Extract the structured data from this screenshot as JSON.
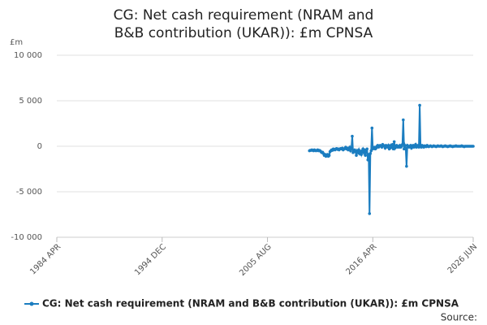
{
  "chart_data": {
    "type": "line",
    "title": "CG: Net cash requirement (NRAM and B&B contribution (UKAR)): £m CPNSA",
    "y_label": "£m",
    "source": "Source:",
    "xlim": [
      "1984-04",
      "2026-06"
    ],
    "xticks": [
      {
        "value": "1984-04",
        "label": "1984 APR"
      },
      {
        "value": "1994-12",
        "label": "1994 DEC"
      },
      {
        "value": "2005-08",
        "label": "2005 AUG"
      },
      {
        "value": "2016-04",
        "label": "2016 APR"
      },
      {
        "value": "2026-06",
        "label": "2026 JUN"
      }
    ],
    "ylim": [
      -10000,
      10000
    ],
    "yticks": [
      {
        "value": -10000,
        "label": "-10 000"
      },
      {
        "value": -5000,
        "label": "-5 000"
      },
      0,
      {
        "value": 5000,
        "label": "5 000"
      },
      {
        "value": 10000,
        "label": "10 000"
      }
    ],
    "grid": true,
    "legend": "bottom",
    "x": [
      "2009-11",
      "2009-12",
      "2010-01",
      "2010-02",
      "2010-03",
      "2010-04",
      "2010-05",
      "2010-06",
      "2010-07",
      "2010-08",
      "2010-09",
      "2010-10",
      "2010-11",
      "2010-12",
      "2011-01",
      "2011-02",
      "2011-03",
      "2011-04",
      "2011-05",
      "2011-06",
      "2011-07",
      "2011-08",
      "2011-09",
      "2011-10",
      "2011-11",
      "2011-12",
      "2012-01",
      "2012-02",
      "2012-03",
      "2012-04",
      "2012-05",
      "2012-06",
      "2012-07",
      "2012-08",
      "2012-09",
      "2012-10",
      "2012-11",
      "2012-12",
      "2013-01",
      "2013-02",
      "2013-03",
      "2013-04",
      "2013-05",
      "2013-06",
      "2013-07",
      "2013-08",
      "2013-09",
      "2013-10",
      "2013-11",
      "2013-12",
      "2014-01",
      "2014-02",
      "2014-03",
      "2014-04",
      "2014-05",
      "2014-06",
      "2014-07",
      "2014-08",
      "2014-09",
      "2014-10",
      "2014-11",
      "2014-12",
      "2015-01",
      "2015-02",
      "2015-03",
      "2015-04",
      "2015-05",
      "2015-06",
      "2015-07",
      "2015-08",
      "2015-09",
      "2015-10",
      "2015-11",
      "2015-12",
      "2016-01",
      "2016-02",
      "2016-03",
      "2016-04",
      "2016-05",
      "2016-06",
      "2016-07",
      "2016-08",
      "2016-09",
      "2016-10",
      "2016-11",
      "2016-12",
      "2017-01",
      "2017-02",
      "2017-03",
      "2017-04",
      "2017-05",
      "2017-06",
      "2017-07",
      "2017-08",
      "2017-09",
      "2017-10",
      "2017-11",
      "2017-12",
      "2018-01",
      "2018-02",
      "2018-03",
      "2018-04",
      "2018-05",
      "2018-06",
      "2018-07",
      "2018-08",
      "2018-09",
      "2018-10",
      "2018-11",
      "2018-12",
      "2019-01",
      "2019-02",
      "2019-03",
      "2019-04",
      "2019-05",
      "2019-06",
      "2019-07",
      "2019-08",
      "2019-09",
      "2019-10",
      "2019-11",
      "2019-12",
      "2020-01",
      "2020-02",
      "2020-03",
      "2020-04",
      "2020-05",
      "2020-06",
      "2020-07",
      "2020-08",
      "2020-09",
      "2020-10",
      "2020-11",
      "2020-12",
      "2021-01",
      "2021-02",
      "2021-03",
      "2021-04",
      "2021-05",
      "2021-06",
      "2021-07",
      "2021-08",
      "2021-09",
      "2021-10",
      "2021-11",
      "2021-12",
      "2022-01",
      "2022-02",
      "2022-03",
      "2022-04",
      "2022-05",
      "2022-06",
      "2022-07",
      "2022-08",
      "2022-09",
      "2022-10",
      "2022-11",
      "2022-12",
      "2023-01",
      "2023-02",
      "2023-03",
      "2023-04",
      "2023-05",
      "2023-06",
      "2023-07",
      "2023-08",
      "2023-09",
      "2023-10",
      "2023-11",
      "2023-12",
      "2024-01",
      "2024-02",
      "2024-03",
      "2024-04",
      "2024-05",
      "2024-06",
      "2024-07",
      "2024-08",
      "2024-09",
      "2024-10",
      "2024-11",
      "2024-12",
      "2025-01",
      "2025-02",
      "2025-03",
      "2025-04",
      "2025-05",
      "2025-06",
      "2025-07",
      "2025-08",
      "2025-09",
      "2025-10",
      "2025-11",
      "2025-12",
      "2026-01",
      "2026-02",
      "2026-03",
      "2026-04",
      "2026-05",
      "2026-06"
    ],
    "series": [
      {
        "name": "CG: Net cash requirement (NRAM and B&B contribution (UKAR)): £m CPNSA",
        "color": "#1b7dc0",
        "values": [
          -500,
          -450,
          -450,
          -400,
          -450,
          -500,
          -400,
          -450,
          -500,
          -450,
          -400,
          -500,
          -450,
          -500,
          -600,
          -700,
          -650,
          -800,
          -1000,
          -900,
          -1100,
          -1000,
          -900,
          -1100,
          -1000,
          -600,
          -500,
          -400,
          -450,
          -300,
          -350,
          -400,
          -300,
          -250,
          -350,
          -300,
          -400,
          -300,
          -250,
          -300,
          -200,
          -400,
          -300,
          -250,
          -100,
          -300,
          -200,
          -400,
          -300,
          -100,
          -500,
          -300,
          1100,
          -700,
          -500,
          -400,
          -600,
          -1000,
          -500,
          -700,
          -400,
          -800,
          -600,
          -900,
          -500,
          -300,
          -700,
          -400,
          -1000,
          -500,
          -300,
          -1500,
          -900,
          -7400,
          -800,
          -500,
          2000,
          -300,
          -200,
          -100,
          -300,
          -200,
          0,
          100,
          -100,
          0,
          100,
          0,
          -100,
          200,
          100,
          0,
          -200,
          100,
          0,
          -100,
          100,
          -300,
          -200,
          100,
          -100,
          200,
          -300,
          500,
          -200,
          0,
          100,
          -100,
          0,
          -100,
          100,
          -100,
          0,
          200,
          2900,
          -300,
          100,
          -200,
          -2200,
          100,
          0,
          -100,
          0,
          100,
          -200,
          0,
          100,
          -100,
          0,
          200,
          -100,
          0,
          100,
          -100,
          4500,
          0,
          -100,
          100,
          0,
          -100,
          50,
          0,
          -50,
          100,
          0,
          -50,
          0,
          50,
          0,
          -50,
          0,
          50,
          0,
          0,
          -50,
          0,
          50,
          0,
          0,
          0,
          50,
          0,
          -50,
          0,
          0,
          50,
          0,
          0,
          -50,
          0,
          0,
          50,
          0,
          0,
          -50,
          0,
          0,
          0,
          50,
          0,
          0,
          0,
          0,
          0,
          0,
          50,
          0,
          0,
          -50,
          0,
          0,
          0,
          0,
          0,
          0,
          0,
          0,
          0,
          0,
          0
        ]
      }
    ]
  }
}
